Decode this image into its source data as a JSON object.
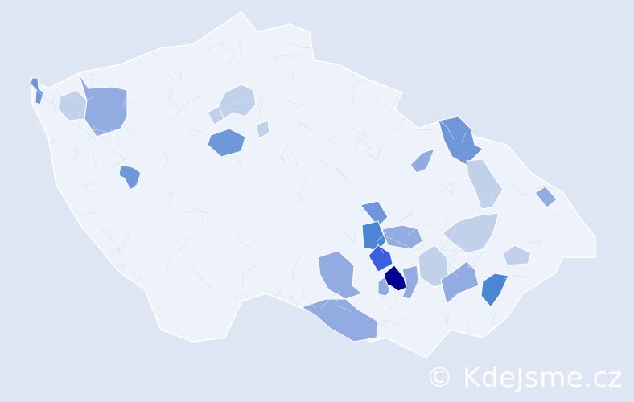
{
  "watermark": "© KdeJsme.cz",
  "map": {
    "base_color": "#eef2fa",
    "border_color": "#c8d2e6",
    "scale_colors": [
      "#c2d1ea",
      "#92abe0",
      "#6e98da",
      "#4a86d4",
      "#3a5fe0",
      "#000090"
    ]
  }
}
